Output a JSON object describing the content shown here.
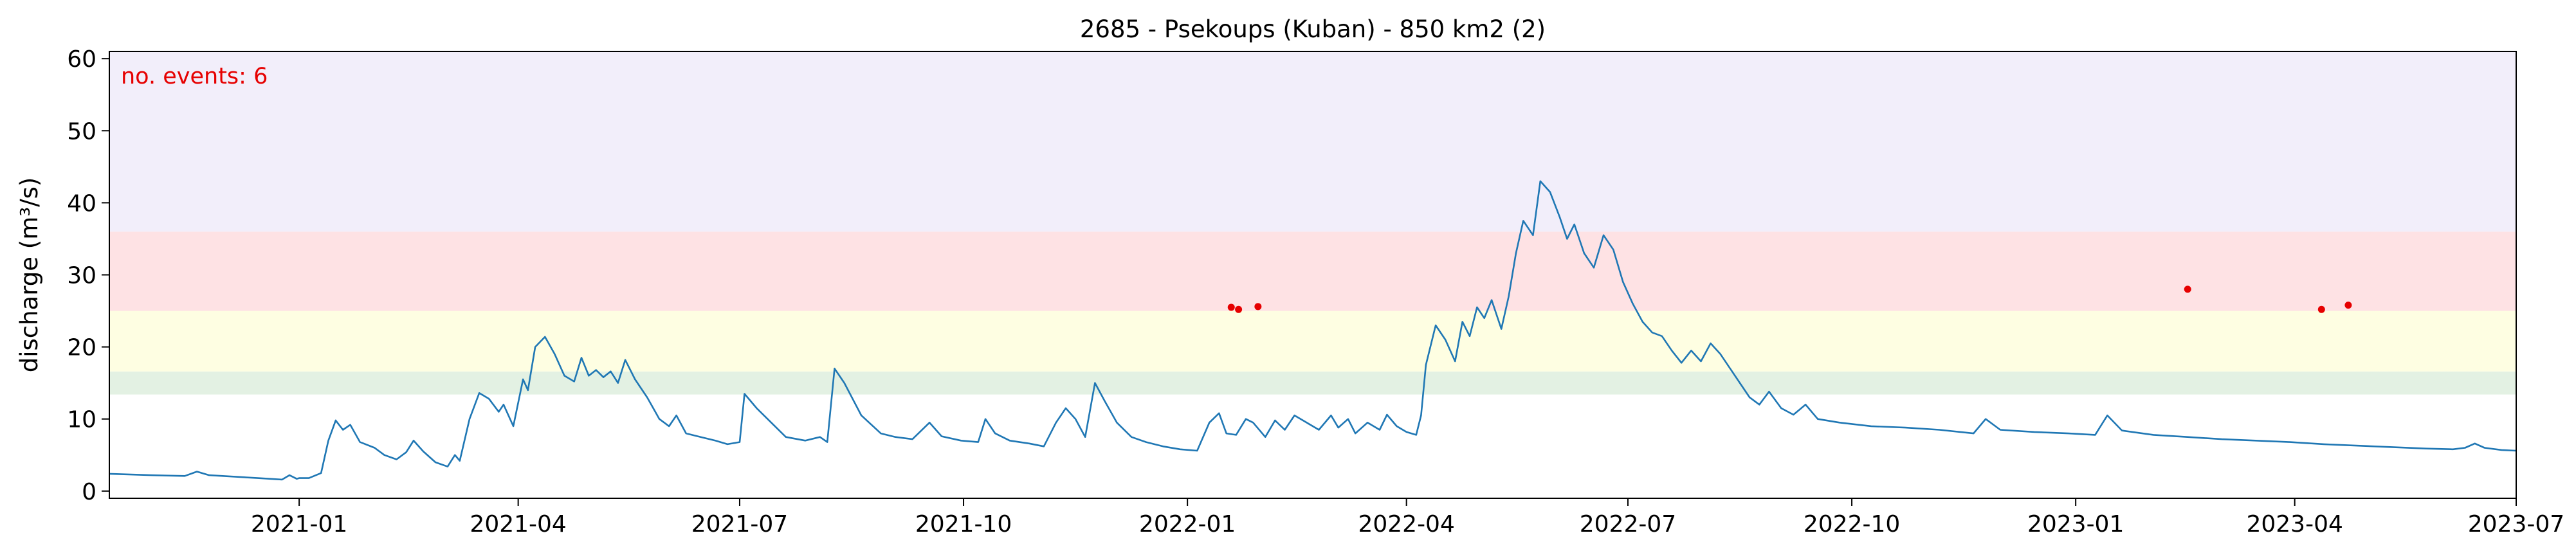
{
  "chart_data": {
    "type": "line",
    "title": "2685 - Psekoups (Kuban) - 850 km2 (2)",
    "xlabel": "",
    "ylabel": "discharge (m³/s)",
    "xlim": [
      "2020-10-15",
      "2023-07-01"
    ],
    "ylim": [
      -1,
      61
    ],
    "x_ticks": [
      "2021-01-01",
      "2021-04-01",
      "2021-07-01",
      "2021-10-01",
      "2022-01-01",
      "2022-04-01",
      "2022-07-01",
      "2022-10-01",
      "2023-01-01",
      "2023-04-01",
      "2023-07-01"
    ],
    "x_tick_labels": [
      "2021-01",
      "2021-04",
      "2021-07",
      "2021-10",
      "2022-01",
      "2022-04",
      "2022-07",
      "2022-10",
      "2023-01",
      "2023-04",
      "2023-07"
    ],
    "y_ticks": [
      0,
      10,
      20,
      30,
      40,
      50,
      60
    ],
    "y_tick_labels": [
      "0",
      "10",
      "20",
      "30",
      "40",
      "50",
      "60"
    ],
    "grid": false,
    "annotation": {
      "text": "no. events: 6",
      "color": "#e60000"
    },
    "bands": [
      {
        "y0": 13.4,
        "y1": 16.6,
        "color": "#e3f1e3"
      },
      {
        "y0": 16.6,
        "y1": 25.0,
        "color": "#fefee2"
      },
      {
        "y0": 25.0,
        "y1": 36.0,
        "color": "#fee2e4"
      },
      {
        "y0": 36.0,
        "y1": 61.0,
        "color": "#f2eefa"
      }
    ],
    "series": [
      {
        "color": "#1f77b4",
        "points": [
          [
            "2020-10-15",
            2.4
          ],
          [
            "2020-11-01",
            2.2
          ],
          [
            "2020-11-15",
            2.1
          ],
          [
            "2020-11-20",
            2.7
          ],
          [
            "2020-11-25",
            2.2
          ],
          [
            "2020-12-15",
            1.8
          ],
          [
            "2020-12-25",
            1.6
          ],
          [
            "2020-12-28",
            2.2
          ],
          [
            "2020-12-31",
            1.7
          ],
          [
            "2021-01-01",
            1.8
          ],
          [
            "2021-01-05",
            1.8
          ],
          [
            "2021-01-10",
            2.5
          ],
          [
            "2021-01-13",
            7.0
          ],
          [
            "2021-01-16",
            9.8
          ],
          [
            "2021-01-19",
            8.5
          ],
          [
            "2021-01-22",
            9.2
          ],
          [
            "2021-01-26",
            6.8
          ],
          [
            "2021-02-01",
            6.0
          ],
          [
            "2021-02-05",
            5.0
          ],
          [
            "2021-02-10",
            4.4
          ],
          [
            "2021-02-14",
            5.4
          ],
          [
            "2021-02-17",
            7.0
          ],
          [
            "2021-02-21",
            5.5
          ],
          [
            "2021-02-26",
            4.0
          ],
          [
            "2021-03-03",
            3.4
          ],
          [
            "2021-03-06",
            5.0
          ],
          [
            "2021-03-08",
            4.2
          ],
          [
            "2021-03-12",
            10.0
          ],
          [
            "2021-03-16",
            13.6
          ],
          [
            "2021-03-20",
            12.8
          ],
          [
            "2021-03-24",
            11.0
          ],
          [
            "2021-03-26",
            12.0
          ],
          [
            "2021-03-30",
            9.0
          ],
          [
            "2021-04-03",
            15.5
          ],
          [
            "2021-04-05",
            14.0
          ],
          [
            "2021-04-08",
            20.0
          ],
          [
            "2021-04-12",
            21.4
          ],
          [
            "2021-04-16",
            19.0
          ],
          [
            "2021-04-20",
            16.0
          ],
          [
            "2021-04-24",
            15.2
          ],
          [
            "2021-04-27",
            18.5
          ],
          [
            "2021-04-30",
            16.0
          ],
          [
            "2021-05-03",
            16.8
          ],
          [
            "2021-05-06",
            15.8
          ],
          [
            "2021-05-09",
            16.6
          ],
          [
            "2021-05-12",
            15.0
          ],
          [
            "2021-05-15",
            18.2
          ],
          [
            "2021-05-19",
            15.5
          ],
          [
            "2021-05-24",
            13.0
          ],
          [
            "2021-05-29",
            10.0
          ],
          [
            "2021-06-02",
            9.0
          ],
          [
            "2021-06-05",
            10.5
          ],
          [
            "2021-06-09",
            8.0
          ],
          [
            "2021-06-15",
            7.5
          ],
          [
            "2021-06-21",
            7.0
          ],
          [
            "2021-06-26",
            6.5
          ],
          [
            "2021-07-01",
            6.8
          ],
          [
            "2021-07-03",
            13.5
          ],
          [
            "2021-07-08",
            11.5
          ],
          [
            "2021-07-14",
            9.5
          ],
          [
            "2021-07-20",
            7.5
          ],
          [
            "2021-07-28",
            7.0
          ],
          [
            "2021-08-03",
            7.5
          ],
          [
            "2021-08-06",
            6.8
          ],
          [
            "2021-08-09",
            17.0
          ],
          [
            "2021-08-13",
            15.0
          ],
          [
            "2021-08-20",
            10.5
          ],
          [
            "2021-08-28",
            8.0
          ],
          [
            "2021-09-03",
            7.5
          ],
          [
            "2021-09-10",
            7.2
          ],
          [
            "2021-09-17",
            9.5
          ],
          [
            "2021-09-22",
            7.6
          ],
          [
            "2021-09-30",
            7.0
          ],
          [
            "2021-10-07",
            6.8
          ],
          [
            "2021-10-10",
            10.0
          ],
          [
            "2021-10-14",
            8.0
          ],
          [
            "2021-10-20",
            7.0
          ],
          [
            "2021-10-28",
            6.6
          ],
          [
            "2021-11-03",
            6.2
          ],
          [
            "2021-11-08",
            9.5
          ],
          [
            "2021-11-12",
            11.5
          ],
          [
            "2021-11-16",
            10.0
          ],
          [
            "2021-11-20",
            7.5
          ],
          [
            "2021-11-24",
            15.0
          ],
          [
            "2021-11-28",
            12.5
          ],
          [
            "2021-12-03",
            9.5
          ],
          [
            "2021-12-09",
            7.5
          ],
          [
            "2021-12-15",
            6.8
          ],
          [
            "2021-12-22",
            6.2
          ],
          [
            "2021-12-29",
            5.8
          ],
          [
            "2022-01-05",
            5.6
          ],
          [
            "2022-01-10",
            9.5
          ],
          [
            "2022-01-14",
            10.8
          ],
          [
            "2022-01-17",
            8.0
          ],
          [
            "2022-01-21",
            7.8
          ],
          [
            "2022-01-25",
            10.0
          ],
          [
            "2022-01-28",
            9.5
          ],
          [
            "2022-02-02",
            7.5
          ],
          [
            "2022-02-06",
            9.8
          ],
          [
            "2022-02-10",
            8.5
          ],
          [
            "2022-02-14",
            10.5
          ],
          [
            "2022-02-19",
            9.5
          ],
          [
            "2022-02-24",
            8.5
          ],
          [
            "2022-03-01",
            10.5
          ],
          [
            "2022-03-04",
            8.8
          ],
          [
            "2022-03-08",
            10.0
          ],
          [
            "2022-03-11",
            8.0
          ],
          [
            "2022-03-16",
            9.5
          ],
          [
            "2022-03-21",
            8.5
          ],
          [
            "2022-03-24",
            10.6
          ],
          [
            "2022-03-28",
            9.0
          ],
          [
            "2022-04-01",
            8.2
          ],
          [
            "2022-04-05",
            7.8
          ],
          [
            "2022-04-07",
            10.5
          ],
          [
            "2022-04-09",
            17.5
          ],
          [
            "2022-04-13",
            23.0
          ],
          [
            "2022-04-17",
            21.0
          ],
          [
            "2022-04-21",
            18.0
          ],
          [
            "2022-04-24",
            23.5
          ],
          [
            "2022-04-27",
            21.5
          ],
          [
            "2022-04-30",
            25.5
          ],
          [
            "2022-05-03",
            24.0
          ],
          [
            "2022-05-06",
            26.5
          ],
          [
            "2022-05-10",
            22.5
          ],
          [
            "2022-05-13",
            27.0
          ],
          [
            "2022-05-16",
            33.0
          ],
          [
            "2022-05-19",
            37.5
          ],
          [
            "2022-05-23",
            35.5
          ],
          [
            "2022-05-26",
            43.0
          ],
          [
            "2022-05-30",
            41.5
          ],
          [
            "2022-06-03",
            38.0
          ],
          [
            "2022-06-06",
            35.0
          ],
          [
            "2022-06-09",
            37.0
          ],
          [
            "2022-06-13",
            33.0
          ],
          [
            "2022-06-17",
            31.0
          ],
          [
            "2022-06-21",
            35.5
          ],
          [
            "2022-06-25",
            33.5
          ],
          [
            "2022-06-29",
            29.0
          ],
          [
            "2022-07-03",
            26.0
          ],
          [
            "2022-07-07",
            23.5
          ],
          [
            "2022-07-11",
            22.0
          ],
          [
            "2022-07-15",
            21.5
          ],
          [
            "2022-07-19",
            19.5
          ],
          [
            "2022-07-23",
            17.8
          ],
          [
            "2022-07-27",
            19.5
          ],
          [
            "2022-07-31",
            18.0
          ],
          [
            "2022-08-04",
            20.5
          ],
          [
            "2022-08-08",
            19.0
          ],
          [
            "2022-08-12",
            17.0
          ],
          [
            "2022-08-16",
            15.0
          ],
          [
            "2022-08-20",
            13.0
          ],
          [
            "2022-08-24",
            12.0
          ],
          [
            "2022-08-28",
            13.8
          ],
          [
            "2022-09-02",
            11.5
          ],
          [
            "2022-09-07",
            10.6
          ],
          [
            "2022-09-12",
            12.0
          ],
          [
            "2022-09-17",
            10.0
          ],
          [
            "2022-09-26",
            9.5
          ],
          [
            "2022-10-09",
            9.0
          ],
          [
            "2022-10-23",
            8.8
          ],
          [
            "2022-11-06",
            8.5
          ],
          [
            "2022-11-20",
            8.0
          ],
          [
            "2022-11-25",
            10.0
          ],
          [
            "2022-12-01",
            8.5
          ],
          [
            "2022-12-15",
            8.2
          ],
          [
            "2022-12-29",
            8.0
          ],
          [
            "2023-01-09",
            7.8
          ],
          [
            "2023-01-14",
            10.5
          ],
          [
            "2023-01-20",
            8.4
          ],
          [
            "2023-02-02",
            7.8
          ],
          [
            "2023-02-16",
            7.5
          ],
          [
            "2023-03-02",
            7.2
          ],
          [
            "2023-03-16",
            7.0
          ],
          [
            "2023-03-30",
            6.8
          ],
          [
            "2023-04-13",
            6.5
          ],
          [
            "2023-04-27",
            6.3
          ],
          [
            "2023-05-11",
            6.1
          ],
          [
            "2023-05-25",
            5.9
          ],
          [
            "2023-06-05",
            5.8
          ],
          [
            "2023-06-10",
            6.0
          ],
          [
            "2023-06-14",
            6.6
          ],
          [
            "2023-06-18",
            6.0
          ],
          [
            "2023-06-25",
            5.7
          ],
          [
            "2023-07-01",
            5.6
          ]
        ]
      }
    ],
    "events": [
      [
        "2022-01-19",
        25.5
      ],
      [
        "2022-01-22",
        25.2
      ],
      [
        "2022-01-30",
        25.6
      ],
      [
        "2023-02-16",
        28.0
      ],
      [
        "2023-04-12",
        25.2
      ],
      [
        "2023-04-23",
        25.8
      ]
    ]
  }
}
